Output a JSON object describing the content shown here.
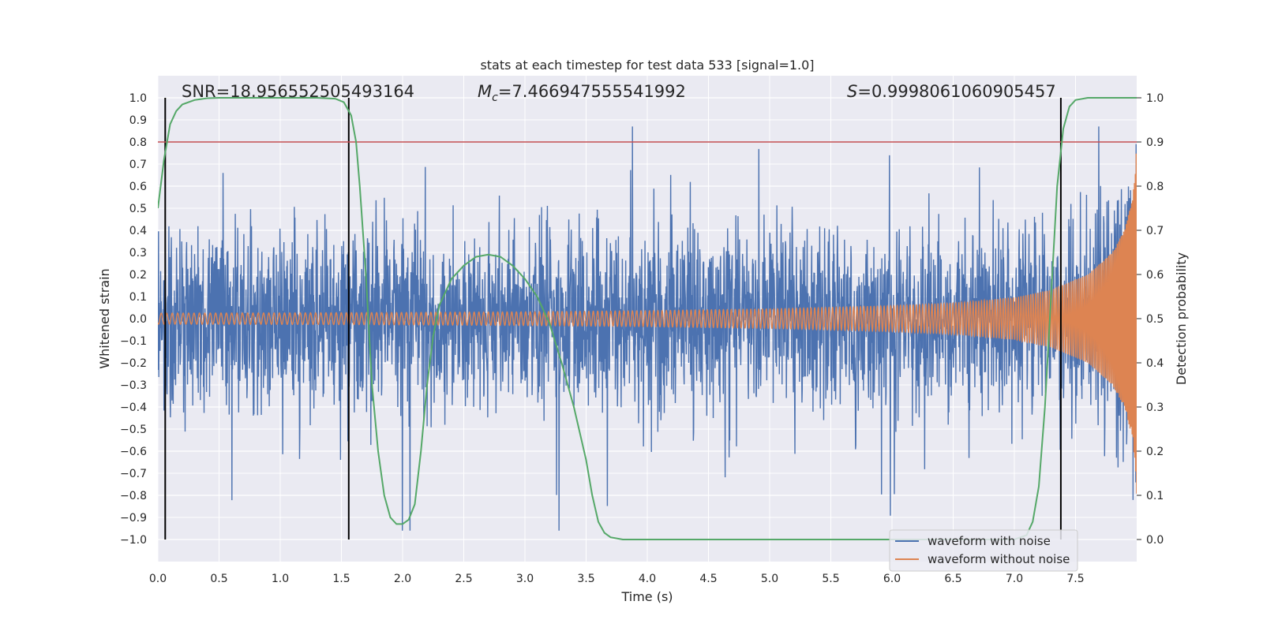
{
  "chart_data": {
    "type": "line",
    "title": "stats at each timestep for test data 533 [signal=1.0]",
    "xlabel": "Time (s)",
    "ylabel": "Whitened strain",
    "ylabel_right": "Detection probability",
    "xlim": [
      0.0,
      8.0
    ],
    "ylim": [
      -1.1,
      1.1
    ],
    "ylim_right": [
      -0.05,
      1.05
    ],
    "x_ticks": [
      0.0,
      0.5,
      1.0,
      1.5,
      2.0,
      2.5,
      3.0,
      3.5,
      4.0,
      4.5,
      5.0,
      5.5,
      6.0,
      6.5,
      7.0,
      7.5
    ],
    "x_tick_labels": [
      "0.0",
      "0.5",
      "1.0",
      "1.5",
      "2.0",
      "2.5",
      "3.0",
      "3.5",
      "4.0",
      "4.5",
      "5.0",
      "5.5",
      "6.0",
      "6.5",
      "7.0",
      "7.5"
    ],
    "y_ticks": [
      -1.0,
      -0.9,
      -0.8,
      -0.7,
      -0.6,
      -0.5,
      -0.4,
      -0.3,
      -0.2,
      -0.1,
      0.0,
      0.1,
      0.2,
      0.3,
      0.4,
      0.5,
      0.6,
      0.7,
      0.8,
      0.9,
      1.0
    ],
    "y_tick_labels": [
      "−1.0",
      "−0.9",
      "−0.8",
      "−0.7",
      "−0.6",
      "−0.5",
      "−0.4",
      "−0.3",
      "−0.2",
      "−0.1",
      "0.0",
      "0.1",
      "0.2",
      "0.3",
      "0.4",
      "0.5",
      "0.6",
      "0.7",
      "0.8",
      "0.9",
      "1.0"
    ],
    "y_right_ticks": [
      0.0,
      0.1,
      0.2,
      0.3,
      0.4,
      0.5,
      0.6,
      0.7,
      0.8,
      0.9,
      1.0
    ],
    "y_right_tick_labels": [
      "0.0",
      "0.1",
      "0.2",
      "0.3",
      "0.4",
      "0.5",
      "0.6",
      "0.7",
      "0.8",
      "0.9",
      "1.0"
    ],
    "annotations": {
      "snr_label": "SNR=18.956552505493164",
      "mc_symbol": "M",
      "mc_subscript": "c",
      "mc_value": "=7.466947555541992",
      "s_symbol": "S",
      "s_value": "=0.9998061060905457"
    },
    "threshold": {
      "y_right": 0.9,
      "color": "#c44e52"
    },
    "vertical_lines": {
      "x": [
        0.06,
        1.56,
        7.38
      ],
      "y_range": [
        -1.0,
        1.0
      ],
      "color": "#000000"
    },
    "series": [
      {
        "name": "waveform with noise",
        "color": "#4c72b0",
        "axis": "left",
        "description": "noisy whitened strain, peak excursions about +0.85 / -0.93, gradually narrowing toward +0.3/-0.4 envelope"
      },
      {
        "name": "waveform without noise",
        "color": "#dd8452",
        "axis": "left",
        "envelope": {
          "x": [
            0.0,
            1.0,
            2.0,
            3.0,
            4.0,
            5.0,
            6.0,
            6.5,
            7.0,
            7.3,
            7.6,
            7.8,
            7.9,
            7.97,
            8.0
          ],
          "amplitude": [
            0.025,
            0.026,
            0.028,
            0.031,
            0.036,
            0.044,
            0.058,
            0.07,
            0.095,
            0.13,
            0.2,
            0.3,
            0.4,
            0.55,
            0.8
          ]
        }
      },
      {
        "name": "detection probability",
        "color": "#55a868",
        "axis": "right",
        "x": [
          0.0,
          0.05,
          0.1,
          0.15,
          0.2,
          0.3,
          0.4,
          0.5,
          0.7,
          1.0,
          1.3,
          1.45,
          1.52,
          1.58,
          1.62,
          1.65,
          1.7,
          1.75,
          1.8,
          1.85,
          1.9,
          1.95,
          2.0,
          2.05,
          2.1,
          2.15,
          2.2,
          2.25,
          2.3,
          2.35,
          2.4,
          2.5,
          2.6,
          2.7,
          2.8,
          2.9,
          3.0,
          3.1,
          3.2,
          3.3,
          3.4,
          3.5,
          3.55,
          3.6,
          3.65,
          3.7,
          3.8,
          4.0,
          5.0,
          6.0,
          7.0,
          7.1,
          7.15,
          7.2,
          7.25,
          7.3,
          7.35,
          7.4,
          7.45,
          7.5,
          7.6,
          8.0
        ],
        "values": [
          0.75,
          0.86,
          0.94,
          0.97,
          0.985,
          0.995,
          0.999,
          1.0,
          1.0,
          1.0,
          1.0,
          0.998,
          0.99,
          0.96,
          0.9,
          0.8,
          0.6,
          0.35,
          0.2,
          0.1,
          0.05,
          0.035,
          0.035,
          0.045,
          0.08,
          0.2,
          0.35,
          0.46,
          0.53,
          0.56,
          0.59,
          0.62,
          0.64,
          0.645,
          0.64,
          0.62,
          0.59,
          0.55,
          0.49,
          0.4,
          0.3,
          0.18,
          0.1,
          0.04,
          0.015,
          0.005,
          0.0,
          0.0,
          0.0,
          0.0,
          0.0,
          0.01,
          0.04,
          0.12,
          0.3,
          0.55,
          0.8,
          0.93,
          0.98,
          0.995,
          1.0,
          1.0
        ]
      }
    ],
    "legend": {
      "position": "lower-right",
      "entries": [
        "waveform with noise",
        "waveform without noise"
      ]
    }
  }
}
